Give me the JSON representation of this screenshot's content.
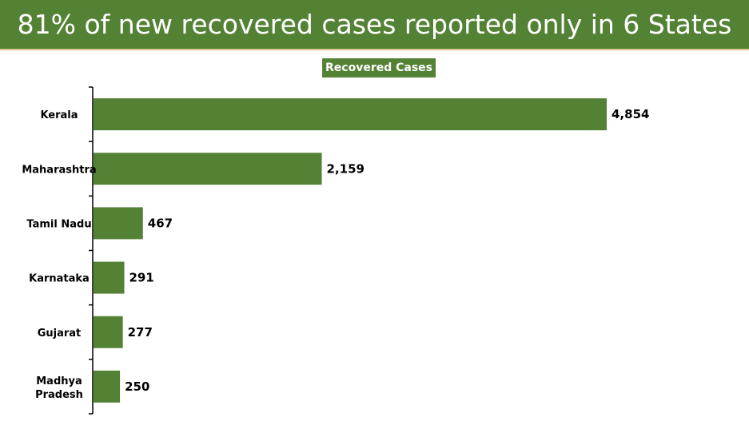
{
  "header": {
    "title": "81% of new recovered cases reported only in 6 States"
  },
  "colors": {
    "accent": "#548235",
    "title_border": "#d9c58a",
    "bar": "#548235"
  },
  "chart_data": {
    "type": "bar",
    "orientation": "horizontal",
    "title": "Recovered Cases",
    "categories": [
      "Kerala",
      "Maharashtra",
      "Tamil Nadu",
      "Karnataka",
      "Gujarat",
      "Madhya Pradesh"
    ],
    "series": [
      {
        "name": "Recovered Cases",
        "values": [
          4854,
          2159,
          467,
          291,
          277,
          250
        ],
        "labels": [
          "4,854",
          "2,159",
          "467",
          "291",
          "277",
          "250"
        ]
      }
    ],
    "xlim": [
      0,
      5000
    ],
    "grid": false,
    "legend": "top-center"
  }
}
